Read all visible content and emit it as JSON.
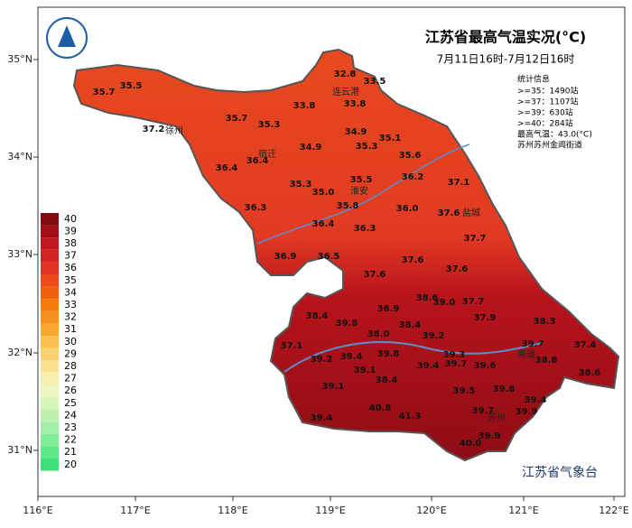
{
  "header": {
    "title": "江苏省最高气温实况(°C)",
    "subtitle": "7月11日16时-7月12日16时"
  },
  "stats": {
    "heading": "统计信息",
    "lines": [
      ">=35：1490站",
      ">=37：1107站",
      ">=39：630站",
      ">=40：284站",
      "最高气温：43.0(°C)",
      "苏州苏州金阊街道"
    ]
  },
  "axes": {
    "lon": [
      "116°E",
      "117°E",
      "118°E",
      "119°E",
      "120°E",
      "121°E",
      "122°E"
    ],
    "lat": [
      "35°N",
      "34°N",
      "33°N",
      "32°N",
      "31°N"
    ]
  },
  "legend": [
    {
      "value": 40,
      "color": "#7e0c10"
    },
    {
      "value": 39,
      "color": "#a01018"
    },
    {
      "value": 38,
      "color": "#c01820"
    },
    {
      "value": 37,
      "color": "#d42422"
    },
    {
      "value": 36,
      "color": "#e23424"
    },
    {
      "value": 35,
      "color": "#ea4a1c"
    },
    {
      "value": 34,
      "color": "#f06212"
    },
    {
      "value": 33,
      "color": "#f57b10"
    },
    {
      "value": 32,
      "color": "#f89020"
    },
    {
      "value": 31,
      "color": "#f8a830"
    },
    {
      "value": 30,
      "color": "#fbc050"
    },
    {
      "value": 29,
      "color": "#fbd070"
    },
    {
      "value": 28,
      "color": "#fbe090"
    },
    {
      "value": 27,
      "color": "#f6f0b0"
    },
    {
      "value": 26,
      "color": "#eef5c0"
    },
    {
      "value": 25,
      "color": "#d8f5b8"
    },
    {
      "value": 24,
      "color": "#c0f0b0"
    },
    {
      "value": 23,
      "color": "#a0f0a8"
    },
    {
      "value": 22,
      "color": "#80ee98"
    },
    {
      "value": 21,
      "color": "#5fe88a"
    },
    {
      "value": 20,
      "color": "#3ee07a"
    }
  ],
  "stations": [
    "35.7",
    "35.5",
    "32.8",
    "33.5",
    "33.8",
    "33.8",
    "37.2",
    "35.7",
    "35.3",
    "34.9",
    "35.1",
    "34.9",
    "35.3",
    "36.4",
    "35.6",
    "36.4",
    "35.5",
    "36.2",
    "35.3",
    "35.0",
    "37.1",
    "35.8",
    "36.3",
    "36.0",
    "37.6",
    "36.4",
    "36.3",
    "37.7",
    "36.9",
    "36.5",
    "37.6",
    "37.6",
    "37.6",
    "38.4",
    "36.9",
    "38.6",
    "39.0",
    "37.7",
    "39.8",
    "38.4",
    "37.9",
    "38.3",
    "39.2",
    "37.1",
    "38.0",
    "39.7",
    "37.4",
    "39.2",
    "39.4",
    "39.8",
    "39.3",
    "38.8",
    "39.1",
    "39.4",
    "39.7",
    "39.6",
    "38.6",
    "39.1",
    "38.4",
    "39.5",
    "39.8",
    "39.4",
    "39.7",
    "39.9",
    "39.4",
    "40.8",
    "41.3",
    "40.0",
    "39.9"
  ],
  "cities": [
    "连云港",
    "徐州",
    "宿迁",
    "淮安",
    "盐城",
    "南通",
    "苏州"
  ],
  "footer": "江苏省气象台"
}
